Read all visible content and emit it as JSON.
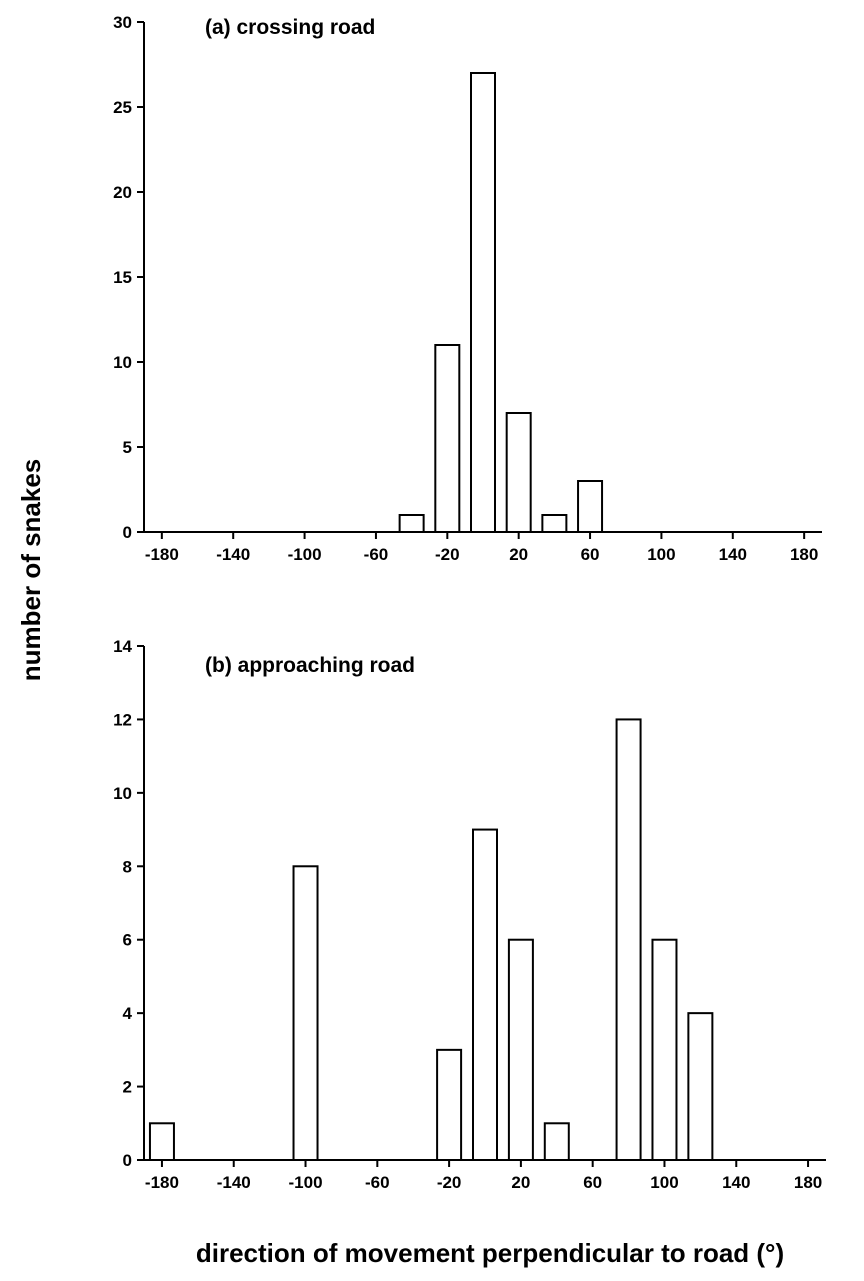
{
  "ylabel": "number of snakes",
  "xlabel": "direction of movement perpendicular to road (°)",
  "chart_data": [
    {
      "type": "bar",
      "title": "(a) crossing road",
      "x": [
        -40,
        -20,
        0,
        20,
        40,
        60
      ],
      "values": [
        1,
        11,
        27,
        7,
        1,
        3
      ],
      "xlim": [
        -190,
        190
      ],
      "ylim": [
        0,
        30
      ],
      "xticks": [
        -180,
        -140,
        -100,
        -60,
        -20,
        20,
        60,
        100,
        140,
        180
      ],
      "xtick_labels": [
        "-180",
        "-140",
        "-100",
        "-60",
        "-20",
        "20",
        "60",
        "100",
        "140",
        "180"
      ],
      "yticks": [
        0,
        5,
        10,
        15,
        20,
        25,
        30
      ],
      "ytick_labels": [
        "0",
        "5",
        "10",
        "15",
        "20",
        "25",
        "30"
      ],
      "grid": false
    },
    {
      "type": "bar",
      "title": "(b) approaching road",
      "x": [
        -180,
        -100,
        -20,
        0,
        20,
        40,
        80,
        100,
        120
      ],
      "values": [
        1,
        8,
        3,
        9,
        6,
        1,
        12,
        6,
        4
      ],
      "xlim": [
        -190,
        190
      ],
      "ylim": [
        0,
        14
      ],
      "xticks": [
        -180,
        -140,
        -100,
        -60,
        -20,
        20,
        60,
        100,
        140,
        180
      ],
      "xtick_labels": [
        "-180",
        "-140",
        "-100",
        "-60",
        "-20",
        "20",
        "60",
        "100",
        "140",
        "180"
      ],
      "yticks": [
        0,
        2,
        4,
        6,
        8,
        10,
        12,
        14
      ],
      "ytick_labels": [
        "0",
        "2",
        "4",
        "6",
        "8",
        "10",
        "12",
        "14"
      ],
      "grid": false
    }
  ]
}
